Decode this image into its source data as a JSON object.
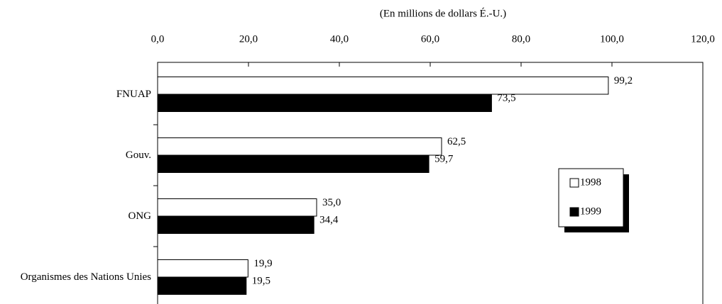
{
  "chart_data": {
    "type": "barh",
    "xlabel": "(En millions de dollars É.-U.)",
    "categories": [
      "FNUAP",
      "Gouv.",
      "ONG",
      "Organismes des Nations Unies"
    ],
    "series": [
      {
        "name": "1998",
        "color": "#ffffff",
        "values": [
          99.2,
          62.5,
          35.0,
          19.9
        ],
        "value_labels": [
          "99,2",
          "62,5",
          "35,0",
          "19,9"
        ]
      },
      {
        "name": "1999",
        "color": "#000000",
        "values": [
          73.5,
          59.7,
          34.4,
          19.5
        ],
        "value_labels": [
          "73,5",
          "59,7",
          "34,4",
          "19,5"
        ]
      }
    ],
    "xlim": [
      0,
      120
    ],
    "xticks": [
      {
        "value": 0,
        "label": "0,0"
      },
      {
        "value": 20,
        "label": "20,0"
      },
      {
        "value": 40,
        "label": "40,0"
      },
      {
        "value": 60,
        "label": "60,0"
      },
      {
        "value": 80,
        "label": "80,0"
      },
      {
        "value": 100,
        "label": "100,0"
      },
      {
        "value": 120,
        "label": "120,0"
      }
    ],
    "grid": false,
    "legend_position": "right"
  }
}
